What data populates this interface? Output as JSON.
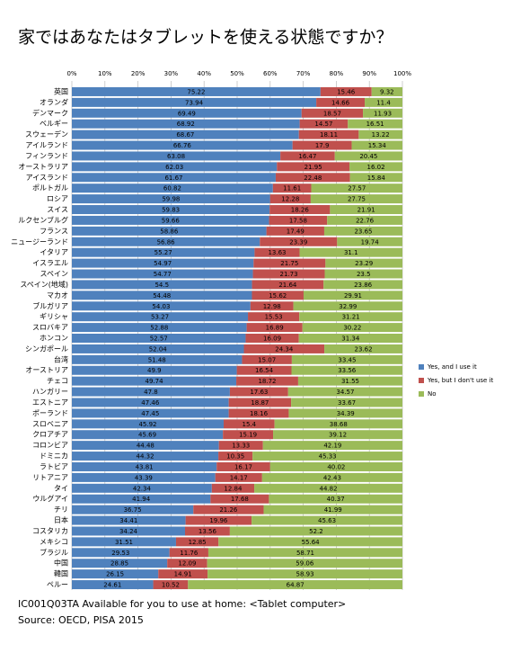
{
  "chart_data": {
    "type": "stacked-bar-horizontal",
    "title": "家ではあなたはタブレットを使える状態ですか？",
    "categories": [
      "英国",
      "オランダ",
      "デンマーク",
      "ベルギー",
      "スウェーデン",
      "アイルランド",
      "フィンランド",
      "オーストラリア",
      "アイスランド",
      "ポルトガル",
      "ロシア",
      "スイス",
      "ルクセンブルグ",
      "フランス",
      "ニュージーランド",
      "イタリア",
      "イスラエル",
      "スペイン",
      "スペイン(地域)",
      "マカオ",
      "ブルガリア",
      "ギリシャ",
      "スロバキア",
      "ホンコン",
      "シンガポール",
      "台湾",
      "オーストリア",
      "チェコ",
      "ハンガリー",
      "エストニア",
      "ポーランド",
      "スロベニア",
      "クロアチア",
      "コロンビア",
      "ドミニカ",
      "ラトビア",
      "リトアニア",
      "タイ",
      "ウルグアイ",
      "チリ",
      "日本",
      "コスタリカ",
      "メキシコ",
      "ブラジル",
      "中国",
      "韓国",
      "ペルー"
    ],
    "series": [
      {
        "name": "Yes, and I use it",
        "color": "#4f81bd",
        "values": [
          75.22,
          73.94,
          69.49,
          68.92,
          68.67,
          66.76,
          63.08,
          62.03,
          61.67,
          60.82,
          59.98,
          59.83,
          59.66,
          58.86,
          56.86,
          55.27,
          54.97,
          54.77,
          54.5,
          54.48,
          54.03,
          53.27,
          52.88,
          52.57,
          52.04,
          51.48,
          49.9,
          49.74,
          47.8,
          47.46,
          47.45,
          45.92,
          45.69,
          44.48,
          44.32,
          43.81,
          43.39,
          42.34,
          41.94,
          36.75,
          34.41,
          34.24,
          31.51,
          29.53,
          28.85,
          26.15,
          24.61
        ]
      },
      {
        "name": "Yes, but I don't use it",
        "color": "#c0504d",
        "values": [
          15.46,
          14.66,
          18.57,
          14.57,
          18.11,
          17.9,
          16.47,
          21.95,
          22.48,
          11.61,
          12.28,
          18.26,
          17.58,
          17.49,
          23.39,
          13.63,
          21.75,
          21.73,
          21.64,
          15.62,
          12.98,
          15.53,
          16.89,
          16.09,
          24.34,
          15.07,
          16.54,
          18.72,
          17.63,
          18.87,
          18.16,
          15.4,
          15.19,
          13.33,
          10.35,
          16.17,
          14.17,
          12.84,
          17.68,
          21.26,
          19.96,
          13.56,
          12.85,
          11.76,
          12.09,
          14.91,
          10.52
        ]
      },
      {
        "name": "No",
        "color": "#9bbb59",
        "values": [
          9.32,
          11.4,
          11.93,
          16.51,
          13.22,
          15.34,
          20.45,
          16.02,
          15.84,
          27.57,
          27.75,
          21.91,
          22.76,
          23.65,
          19.74,
          31.1,
          23.29,
          23.5,
          23.86,
          29.91,
          32.99,
          31.21,
          30.22,
          31.34,
          23.62,
          33.45,
          33.56,
          31.55,
          34.57,
          33.67,
          34.39,
          38.68,
          39.12,
          42.19,
          45.33,
          40.02,
          42.43,
          44.82,
          40.37,
          41.99,
          45.63,
          52.2,
          55.64,
          58.71,
          59.06,
          58.93,
          64.87
        ]
      }
    ],
    "xlim": [
      0,
      100
    ],
    "xticks": [
      {
        "value": 0,
        "label": "0%"
      },
      {
        "value": 10,
        "label": "10%"
      },
      {
        "value": 20,
        "label": "20%"
      },
      {
        "value": 30,
        "label": "30%"
      },
      {
        "value": 40,
        "label": "40%"
      },
      {
        "value": 50,
        "label": "50%"
      },
      {
        "value": 60,
        "label": "60%"
      },
      {
        "value": 70,
        "label": "70%"
      },
      {
        "value": 80,
        "label": "80%"
      },
      {
        "value": 90,
        "label": "90%"
      },
      {
        "value": 100,
        "label": "100%"
      }
    ],
    "grid": true,
    "legend": "right",
    "notes": [
      "IC001Q03TA Available for you to use at home: <Tablet computer>",
      "Source: OECD, PISA 2015"
    ]
  }
}
